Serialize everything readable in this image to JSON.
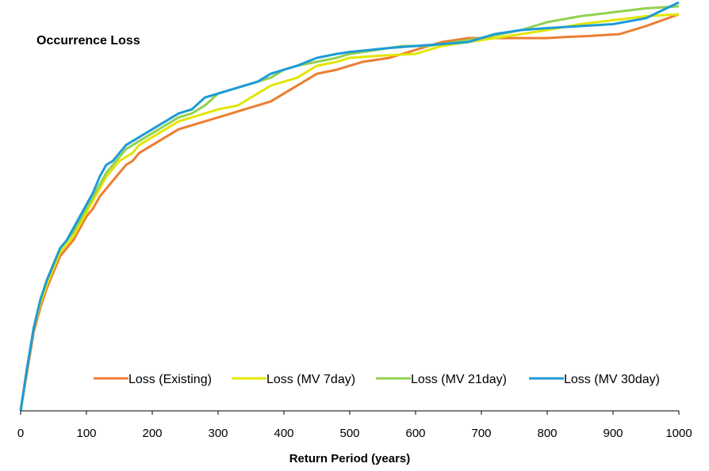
{
  "chart_data": {
    "type": "line",
    "title": "Occurrence Loss",
    "xlabel": "Return Period (years)",
    "ylabel": "",
    "xlim": [
      0,
      1000
    ],
    "ylim": [
      0,
      100
    ],
    "x_ticks": [
      "0",
      "100",
      "200",
      "300",
      "400",
      "500",
      "600",
      "700",
      "800",
      "900",
      "1000"
    ],
    "y_ticks": [],
    "grid": false,
    "legend_position": "bottom-right",
    "series": [
      {
        "name": "Loss (Existing)",
        "color": "#ED7D31",
        "points": [
          [
            0,
            0
          ],
          [
            10,
            10
          ],
          [
            20,
            20
          ],
          [
            30,
            26
          ],
          [
            40,
            31
          ],
          [
            50,
            35
          ],
          [
            60,
            39
          ],
          [
            70,
            41
          ],
          [
            80,
            43
          ],
          [
            90,
            46
          ],
          [
            100,
            49
          ],
          [
            110,
            51
          ],
          [
            120,
            54
          ],
          [
            130,
            56
          ],
          [
            140,
            58
          ],
          [
            150,
            60
          ],
          [
            160,
            62
          ],
          [
            170,
            63
          ],
          [
            180,
            65
          ],
          [
            190,
            66
          ],
          [
            200,
            67
          ],
          [
            220,
            69
          ],
          [
            240,
            71
          ],
          [
            260,
            72
          ],
          [
            280,
            73
          ],
          [
            300,
            74
          ],
          [
            320,
            75
          ],
          [
            340,
            76
          ],
          [
            360,
            77
          ],
          [
            380,
            78
          ],
          [
            400,
            80
          ],
          [
            420,
            82
          ],
          [
            450,
            85
          ],
          [
            480,
            86
          ],
          [
            500,
            87
          ],
          [
            520,
            88
          ],
          [
            560,
            89
          ],
          [
            600,
            91
          ],
          [
            640,
            93
          ],
          [
            680,
            94
          ],
          [
            720,
            94
          ],
          [
            800,
            94
          ],
          [
            830,
            94.3
          ],
          [
            860,
            94.5
          ],
          [
            910,
            95
          ],
          [
            950,
            97
          ],
          [
            1000,
            100
          ]
        ]
      },
      {
        "name": "Loss (MV 7day)",
        "color": "#E2E600",
        "points": [
          [
            0,
            0
          ],
          [
            10,
            11
          ],
          [
            20,
            21
          ],
          [
            30,
            27
          ],
          [
            40,
            32
          ],
          [
            50,
            36
          ],
          [
            60,
            40
          ],
          [
            70,
            42
          ],
          [
            80,
            44
          ],
          [
            90,
            47
          ],
          [
            100,
            50
          ],
          [
            110,
            53
          ],
          [
            120,
            56
          ],
          [
            130,
            59
          ],
          [
            140,
            61
          ],
          [
            150,
            63
          ],
          [
            160,
            64
          ],
          [
            170,
            65
          ],
          [
            180,
            67
          ],
          [
            190,
            68
          ],
          [
            200,
            69
          ],
          [
            220,
            71
          ],
          [
            240,
            73
          ],
          [
            260,
            74
          ],
          [
            280,
            75
          ],
          [
            300,
            76
          ],
          [
            330,
            77
          ],
          [
            360,
            80
          ],
          [
            380,
            82
          ],
          [
            400,
            83
          ],
          [
            420,
            84
          ],
          [
            450,
            87
          ],
          [
            480,
            88
          ],
          [
            500,
            89
          ],
          [
            540,
            89.5
          ],
          [
            600,
            90
          ],
          [
            640,
            92
          ],
          [
            680,
            93
          ],
          [
            720,
            94
          ],
          [
            760,
            95
          ],
          [
            800,
            96
          ],
          [
            850,
            97.5
          ],
          [
            900,
            98.5
          ],
          [
            950,
            99.5
          ],
          [
            1000,
            100
          ]
        ]
      },
      {
        "name": "Loss (MV 21day)",
        "color": "#92D050",
        "points": [
          [
            0,
            0
          ],
          [
            10,
            11
          ],
          [
            20,
            21
          ],
          [
            30,
            28
          ],
          [
            40,
            33
          ],
          [
            50,
            37
          ],
          [
            60,
            41
          ],
          [
            70,
            43
          ],
          [
            80,
            45
          ],
          [
            90,
            48
          ],
          [
            100,
            51
          ],
          [
            110,
            54
          ],
          [
            120,
            57
          ],
          [
            130,
            60
          ],
          [
            140,
            62
          ],
          [
            150,
            64
          ],
          [
            160,
            66
          ],
          [
            170,
            67
          ],
          [
            180,
            68
          ],
          [
            190,
            69
          ],
          [
            200,
            70
          ],
          [
            220,
            72
          ],
          [
            240,
            74
          ],
          [
            260,
            75
          ],
          [
            280,
            77
          ],
          [
            300,
            80
          ],
          [
            320,
            81
          ],
          [
            340,
            82
          ],
          [
            360,
            83
          ],
          [
            380,
            84
          ],
          [
            400,
            86
          ],
          [
            420,
            87
          ],
          [
            450,
            88
          ],
          [
            480,
            89
          ],
          [
            500,
            90
          ],
          [
            540,
            91
          ],
          [
            580,
            92
          ],
          [
            620,
            92
          ],
          [
            660,
            93
          ],
          [
            700,
            94
          ],
          [
            760,
            96
          ],
          [
            800,
            98
          ],
          [
            850,
            99.5
          ],
          [
            900,
            100.5
          ],
          [
            950,
            101.5
          ],
          [
            1000,
            102
          ]
        ]
      },
      {
        "name": "Loss (MV 30day)",
        "color": "#1E9BD7",
        "points": [
          [
            0,
            0
          ],
          [
            10,
            11
          ],
          [
            20,
            21
          ],
          [
            30,
            28
          ],
          [
            40,
            33
          ],
          [
            50,
            37
          ],
          [
            60,
            41
          ],
          [
            70,
            43
          ],
          [
            80,
            46
          ],
          [
            90,
            49
          ],
          [
            100,
            52
          ],
          [
            110,
            55
          ],
          [
            120,
            59
          ],
          [
            130,
            62
          ],
          [
            140,
            63
          ],
          [
            150,
            65
          ],
          [
            160,
            67
          ],
          [
            170,
            68
          ],
          [
            180,
            69
          ],
          [
            190,
            70
          ],
          [
            200,
            71
          ],
          [
            220,
            73
          ],
          [
            240,
            75
          ],
          [
            260,
            76
          ],
          [
            280,
            79
          ],
          [
            300,
            80
          ],
          [
            320,
            81
          ],
          [
            340,
            82
          ],
          [
            360,
            83
          ],
          [
            380,
            85
          ],
          [
            400,
            86
          ],
          [
            420,
            87
          ],
          [
            450,
            89
          ],
          [
            480,
            90
          ],
          [
            500,
            90.5
          ],
          [
            530,
            91
          ],
          [
            560,
            91.5
          ],
          [
            600,
            92
          ],
          [
            640,
            92.5
          ],
          [
            680,
            93
          ],
          [
            720,
            95
          ],
          [
            760,
            96
          ],
          [
            800,
            96.5
          ],
          [
            850,
            97
          ],
          [
            900,
            97.5
          ],
          [
            950,
            99
          ],
          [
            1000,
            103
          ]
        ]
      }
    ]
  }
}
